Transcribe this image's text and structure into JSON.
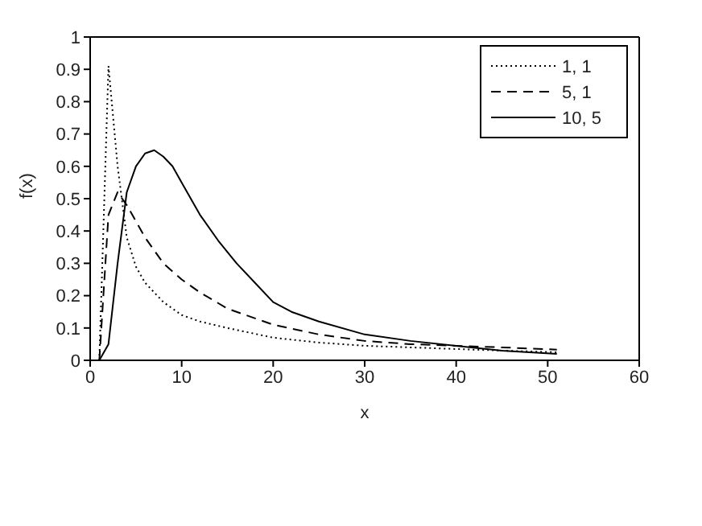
{
  "chart_data": {
    "type": "line",
    "xlabel": "x",
    "ylabel": "f(x)",
    "xlim": [
      0,
      60
    ],
    "ylim": [
      0,
      1
    ],
    "xticks": [
      0,
      10,
      20,
      30,
      40,
      50,
      60
    ],
    "yticks": [
      0,
      0.1,
      0.2,
      0.3,
      0.4,
      0.5,
      0.6,
      0.7,
      0.8,
      0.9,
      1
    ],
    "legend": "top right",
    "marker": "none",
    "series": [
      {
        "name": "1, 1",
        "color": "#000000",
        "line_style": "dotted",
        "x": [
          1,
          2,
          3,
          4,
          5,
          6,
          7,
          8,
          10,
          12,
          15,
          20,
          25,
          30,
          35,
          40,
          45,
          51
        ],
        "values": [
          0,
          0.91,
          0.6,
          0.38,
          0.29,
          0.24,
          0.21,
          0.18,
          0.14,
          0.12,
          0.1,
          0.07,
          0.055,
          0.045,
          0.04,
          0.035,
          0.03,
          0.025
        ]
      },
      {
        "name": "5, 1",
        "color": "#000000",
        "line_style": "dashed",
        "x": [
          1,
          2,
          3,
          4,
          5,
          6,
          7,
          8,
          10,
          12,
          15,
          20,
          25,
          30,
          35,
          40,
          45,
          51
        ],
        "values": [
          0,
          0.45,
          0.52,
          0.48,
          0.43,
          0.38,
          0.34,
          0.3,
          0.25,
          0.21,
          0.16,
          0.11,
          0.08,
          0.06,
          0.05,
          0.045,
          0.04,
          0.033
        ]
      },
      {
        "name": "10, 5",
        "color": "#000000",
        "line_style": "solid",
        "x": [
          1,
          2,
          3,
          4,
          5,
          6,
          7,
          8,
          9,
          10,
          12,
          14,
          16,
          18,
          20,
          22,
          25,
          30,
          35,
          40,
          45,
          51
        ],
        "values": [
          0,
          0.05,
          0.3,
          0.52,
          0.6,
          0.64,
          0.65,
          0.63,
          0.6,
          0.55,
          0.45,
          0.37,
          0.3,
          0.24,
          0.18,
          0.15,
          0.12,
          0.08,
          0.06,
          0.045,
          0.03,
          0.02
        ]
      }
    ]
  }
}
